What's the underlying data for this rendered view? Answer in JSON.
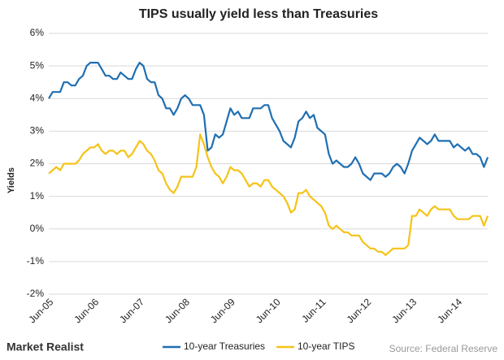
{
  "chart_data": {
    "type": "line",
    "title": "TIPS usually yield less than Treasuries",
    "y_label": "Yields",
    "categories": [
      "Jun-05",
      null,
      null,
      null,
      null,
      null,
      null,
      null,
      null,
      null,
      null,
      null,
      "Jun-06",
      null,
      null,
      null,
      null,
      null,
      null,
      null,
      null,
      null,
      null,
      null,
      "Jun-07",
      null,
      null,
      null,
      null,
      null,
      null,
      null,
      null,
      null,
      null,
      null,
      "Jun-08",
      null,
      null,
      null,
      null,
      null,
      null,
      null,
      null,
      null,
      null,
      null,
      "Jun-09",
      null,
      null,
      null,
      null,
      null,
      null,
      null,
      null,
      null,
      null,
      null,
      "Jun-10",
      null,
      null,
      null,
      null,
      null,
      null,
      null,
      null,
      null,
      null,
      null,
      "Jun-11",
      null,
      null,
      null,
      null,
      null,
      null,
      null,
      null,
      null,
      null,
      null,
      "Jun-12",
      null,
      null,
      null,
      null,
      null,
      null,
      null,
      null,
      null,
      null,
      null,
      "Jun-13",
      null,
      null,
      null,
      null,
      null,
      null,
      null,
      null,
      null,
      null,
      null,
      "Jun-14",
      null,
      null,
      null,
      null,
      null,
      null,
      null,
      null
    ],
    "series": [
      {
        "name": "10-year Treasuries",
        "color": "#1f6fb2",
        "values": [
          4.0,
          4.2,
          4.2,
          4.2,
          4.5,
          4.5,
          4.4,
          4.4,
          4.6,
          4.7,
          5.0,
          5.1,
          5.1,
          5.1,
          4.9,
          4.7,
          4.7,
          4.6,
          4.6,
          4.8,
          4.7,
          4.6,
          4.6,
          4.9,
          5.1,
          5.0,
          4.6,
          4.5,
          4.5,
          4.1,
          4.0,
          3.7,
          3.7,
          3.5,
          3.7,
          4.0,
          4.1,
          4.0,
          3.8,
          3.8,
          3.8,
          3.5,
          2.4,
          2.5,
          2.9,
          2.8,
          2.9,
          3.3,
          3.7,
          3.5,
          3.6,
          3.4,
          3.4,
          3.4,
          3.7,
          3.7,
          3.7,
          3.8,
          3.8,
          3.4,
          3.2,
          3.0,
          2.7,
          2.6,
          2.5,
          2.8,
          3.3,
          3.4,
          3.6,
          3.4,
          3.5,
          3.1,
          3.0,
          2.9,
          2.3,
          2.0,
          2.1,
          2.0,
          1.9,
          1.9,
          2.0,
          2.2,
          2.0,
          1.7,
          1.6,
          1.5,
          1.7,
          1.7,
          1.7,
          1.6,
          1.7,
          1.9,
          2.0,
          1.9,
          1.7,
          2.0,
          2.4,
          2.6,
          2.8,
          2.7,
          2.6,
          2.7,
          2.9,
          2.7,
          2.7,
          2.7,
          2.7,
          2.5,
          2.6,
          2.5,
          2.4,
          2.5,
          2.3,
          2.3,
          2.2,
          1.9,
          2.2
        ]
      },
      {
        "name": "10-year TIPS",
        "color": "#f5c318",
        "values": [
          1.7,
          1.8,
          1.9,
          1.8,
          2.0,
          2.0,
          2.0,
          2.0,
          2.1,
          2.3,
          2.4,
          2.5,
          2.5,
          2.6,
          2.4,
          2.3,
          2.4,
          2.4,
          2.3,
          2.4,
          2.4,
          2.2,
          2.3,
          2.5,
          2.7,
          2.6,
          2.4,
          2.3,
          2.1,
          1.8,
          1.7,
          1.4,
          1.2,
          1.1,
          1.3,
          1.6,
          1.6,
          1.6,
          1.6,
          1.9,
          2.9,
          2.6,
          2.2,
          1.9,
          1.7,
          1.6,
          1.4,
          1.6,
          1.9,
          1.8,
          1.8,
          1.7,
          1.5,
          1.3,
          1.4,
          1.4,
          1.3,
          1.5,
          1.5,
          1.3,
          1.2,
          1.1,
          1.0,
          0.8,
          0.5,
          0.6,
          1.1,
          1.1,
          1.2,
          1.0,
          0.9,
          0.8,
          0.7,
          0.5,
          0.1,
          0.0,
          0.1,
          0.0,
          -0.1,
          -0.1,
          -0.2,
          -0.2,
          -0.2,
          -0.4,
          -0.5,
          -0.6,
          -0.6,
          -0.7,
          -0.7,
          -0.8,
          -0.7,
          -0.6,
          -0.6,
          -0.6,
          -0.6,
          -0.5,
          0.4,
          0.4,
          0.6,
          0.5,
          0.4,
          0.6,
          0.7,
          0.6,
          0.6,
          0.6,
          0.6,
          0.4,
          0.3,
          0.3,
          0.3,
          0.3,
          0.4,
          0.4,
          0.4,
          0.1,
          0.4
        ]
      }
    ],
    "ylim": [
      -2,
      6
    ],
    "yticks": [
      {
        "value": -2,
        "label": "-2%"
      },
      {
        "value": -1,
        "label": "-1%"
      },
      {
        "value": 0,
        "label": "0%"
      },
      {
        "value": 1,
        "label": "1%"
      },
      {
        "value": 2,
        "label": "2%"
      },
      {
        "value": 3,
        "label": "3%"
      },
      {
        "value": 4,
        "label": "4%"
      },
      {
        "value": 5,
        "label": "5%"
      },
      {
        "value": 6,
        "label": "6%"
      }
    ],
    "grid": true,
    "legend": "bottom"
  },
  "footer": {
    "brand": "Market Realist",
    "source": "Source: Federal Reserve"
  }
}
